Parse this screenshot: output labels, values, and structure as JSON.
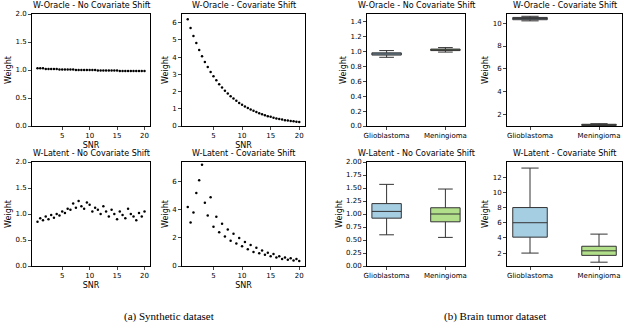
{
  "captions": [
    "(a) Synthetic dataset",
    "(b) Brain tumor dataset"
  ],
  "chart_data": [
    {
      "type": "scatter",
      "title": "W-Oracle - No Covariate Shift",
      "x_label": "SNR",
      "y_label": "Weight",
      "marker": "circle",
      "color": "#000000",
      "grid": false,
      "x": [
        0.5,
        1,
        1.5,
        2,
        2.5,
        3,
        3.5,
        4,
        4.5,
        5,
        5.5,
        6,
        6.5,
        7,
        7.5,
        8,
        8.5,
        9,
        9.5,
        10,
        10.5,
        11,
        11.5,
        12,
        12.5,
        13,
        13.5,
        14,
        14.5,
        15,
        15.5,
        16,
        16.5,
        17,
        17.5,
        18,
        18.5,
        19,
        19.5,
        20
      ],
      "values": [
        1.03,
        1.03,
        1.03,
        1.02,
        1.02,
        1.02,
        1.02,
        1.02,
        1.01,
        1.01,
        1.01,
        1.01,
        1.01,
        1.01,
        1.0,
        1.0,
        1.0,
        1.0,
        1.0,
        1.0,
        1.0,
        1.0,
        0.99,
        0.99,
        0.99,
        0.99,
        0.99,
        0.99,
        0.99,
        0.99,
        0.98,
        0.98,
        0.98,
        0.98,
        0.98,
        0.98,
        0.98,
        0.98,
        0.98,
        0.98
      ],
      "xlim": [
        -0.5,
        21
      ],
      "xticks": [
        5,
        10,
        15,
        20
      ],
      "ylim": [
        0,
        2
      ],
      "yticks": [
        {
          "value": 0,
          "label": "0.0"
        },
        0.5,
        {
          "value": 1,
          "label": "1.0"
        },
        1.5,
        {
          "value": 2,
          "label": "2.0"
        }
      ]
    },
    {
      "type": "scatter",
      "title": "W-Oracle - Covariate Shift",
      "x_label": "SNR",
      "y_label": "Weight",
      "marker": "circle",
      "color": "#000000",
      "grid": false,
      "x": [
        0.5,
        1,
        1.5,
        2,
        2.5,
        3,
        3.5,
        4,
        4.5,
        5,
        5.5,
        6,
        6.5,
        7,
        7.5,
        8,
        8.5,
        9,
        9.5,
        10,
        10.5,
        11,
        11.5,
        12,
        12.5,
        13,
        13.5,
        14,
        14.5,
        15,
        15.5,
        16,
        16.5,
        17,
        17.5,
        18,
        18.5,
        19,
        19.5,
        20
      ],
      "values": [
        6.2,
        5.69,
        5.23,
        4.81,
        4.41,
        4.05,
        3.72,
        3.42,
        3.14,
        2.89,
        2.65,
        2.43,
        2.24,
        2.05,
        1.89,
        1.73,
        1.59,
        1.46,
        1.34,
        1.23,
        1.13,
        1.04,
        0.96,
        0.88,
        0.81,
        0.74,
        0.68,
        0.62,
        0.57,
        0.53,
        0.48,
        0.44,
        0.41,
        0.38,
        0.34,
        0.32,
        0.29,
        0.27,
        0.25,
        0.23
      ],
      "xlim": [
        -0.5,
        21
      ],
      "xticks": [
        5,
        10,
        15,
        20
      ],
      "ylim": [
        0,
        6.5
      ],
      "yticks": [
        0,
        1,
        2,
        3,
        4,
        5,
        6
      ]
    },
    {
      "type": "scatter",
      "title": "W-Latent - No Covariate Shift",
      "x_label": "SNR",
      "y_label": "Weight",
      "marker": "circle",
      "color": "#000000",
      "grid": false,
      "x": [
        0.5,
        1,
        1.5,
        2,
        2.5,
        3,
        3.5,
        4,
        4.5,
        5,
        5.5,
        6,
        6.5,
        7,
        7.5,
        8,
        8.5,
        9,
        9.5,
        10,
        10.5,
        11,
        11.5,
        12,
        12.5,
        13,
        13.5,
        14,
        14.5,
        15,
        15.5,
        16,
        16.5,
        17,
        17.5,
        18,
        18.5,
        19,
        19.5,
        20
      ],
      "values": [
        0.85,
        0.92,
        0.88,
        0.95,
        0.9,
        0.98,
        0.93,
        1.0,
        0.97,
        1.05,
        1.02,
        1.1,
        1.08,
        1.2,
        1.12,
        1.25,
        1.15,
        1.1,
        1.22,
        1.18,
        1.05,
        1.12,
        1.08,
        1.0,
        1.15,
        1.05,
        0.95,
        1.08,
        1.0,
        0.9,
        1.05,
        0.98,
        0.92,
        1.1,
        1.0,
        0.95,
        0.88,
        1.02,
        0.95,
        1.05
      ],
      "xlim": [
        -0.5,
        21
      ],
      "xticks": [
        5,
        10,
        15,
        20
      ],
      "ylim": [
        0,
        2
      ],
      "yticks": [
        {
          "value": 0,
          "label": "0.0"
        },
        0.5,
        {
          "value": 1,
          "label": "1.0"
        },
        1.5,
        {
          "value": 2,
          "label": "2.0"
        }
      ]
    },
    {
      "type": "scatter",
      "title": "W-Latent - Covariate Shift",
      "x_label": "SNR",
      "y_label": "Weight",
      "marker": "circle",
      "color": "#000000",
      "grid": false,
      "x": [
        0.5,
        1,
        1.5,
        2,
        2.5,
        3,
        3.5,
        4,
        4.5,
        5,
        5.5,
        6,
        6.5,
        7,
        7.5,
        8,
        8.5,
        9,
        9.5,
        10,
        10.5,
        11,
        11.5,
        12,
        12.5,
        13,
        13.5,
        14,
        14.5,
        15,
        15.5,
        16,
        16.5,
        17,
        17.5,
        18,
        18.5,
        19,
        19.5,
        20
      ],
      "values": [
        4.2,
        3.1,
        3.8,
        5.2,
        6.1,
        7.2,
        4.5,
        3.6,
        4.9,
        2.8,
        3.5,
        2.4,
        3.0,
        2.1,
        2.6,
        1.8,
        2.3,
        1.6,
        2.0,
        1.4,
        1.7,
        1.2,
        1.5,
        1.0,
        1.3,
        0.9,
        1.1,
        0.8,
        0.95,
        0.7,
        0.85,
        0.6,
        0.7,
        0.5,
        0.6,
        0.45,
        0.55,
        0.4,
        0.5,
        0.35
      ],
      "xlim": [
        -0.5,
        21
      ],
      "xticks": [
        5,
        10,
        15,
        20
      ],
      "ylim": [
        0,
        7.4
      ],
      "yticks": [
        0,
        2,
        4,
        6
      ]
    },
    {
      "type": "box",
      "title": "W-Oracle - No Covariate Shift",
      "y_label": "Weight",
      "grid": false,
      "categories": [
        "Glioblastoma",
        "Meningioma"
      ],
      "colors": [
        "#a6cee3",
        "#b2df8a"
      ],
      "q1": [
        0.95,
        1.01
      ],
      "median": [
        0.965,
        1.02
      ],
      "q3": [
        0.98,
        1.03
      ],
      "lowerfence": [
        0.92,
        0.99
      ],
      "upperfence": [
        1.01,
        1.05
      ],
      "ylim": [
        0,
        1.5
      ],
      "yticks": [
        {
          "value": 0,
          "label": "0.0"
        },
        0.2,
        0.4,
        0.6,
        0.8,
        {
          "value": 1,
          "label": "1.0"
        },
        1.2,
        1.4
      ]
    },
    {
      "type": "box",
      "title": "W-Oracle - Covariate Shift",
      "y_label": "Weight",
      "grid": false,
      "categories": [
        "Glioblastoma",
        "Meningioma"
      ],
      "colors": [
        "#a6cee3",
        "#b2df8a"
      ],
      "q1": [
        10.3,
        1.05
      ],
      "median": [
        10.4,
        1.1
      ],
      "q3": [
        10.5,
        1.15
      ],
      "lowerfence": [
        10.2,
        1.0
      ],
      "upperfence": [
        10.6,
        1.2
      ],
      "ylim": [
        1,
        10.8
      ],
      "yticks": [
        2,
        4,
        6,
        8,
        10
      ]
    },
    {
      "type": "box",
      "title": "W-Latent - No Covariate Shift",
      "y_label": "Weight",
      "grid": false,
      "categories": [
        "Glioblastoma",
        "Meningioma"
      ],
      "colors": [
        "#a6cee3",
        "#b2df8a"
      ],
      "q1": [
        0.92,
        0.85
      ],
      "median": [
        1.05,
        1.0
      ],
      "q3": [
        1.2,
        1.12
      ],
      "lowerfence": [
        0.6,
        0.55
      ],
      "upperfence": [
        1.57,
        1.48
      ],
      "ylim": [
        0,
        2
      ],
      "yticks": [
        {
          "value": 0,
          "label": "0.00"
        },
        0.25,
        {
          "value": 0.5,
          "label": "0.50"
        },
        0.75,
        {
          "value": 1,
          "label": "1.00"
        },
        1.25,
        {
          "value": 1.5,
          "label": "1.50"
        },
        1.75,
        {
          "value": 2,
          "label": "2.00"
        }
      ]
    },
    {
      "type": "box",
      "title": "W-Latent - Covariate Shift",
      "y_label": "Weight",
      "grid": false,
      "categories": [
        "Glioblastoma",
        "Meningioma"
      ],
      "colors": [
        "#a6cee3",
        "#b2df8a"
      ],
      "q1": [
        4.1,
        1.7
      ],
      "median": [
        6.0,
        2.3
      ],
      "q3": [
        8.0,
        2.9
      ],
      "lowerfence": [
        2.0,
        0.8
      ],
      "upperfence": [
        13.2,
        4.5
      ],
      "ylim": [
        0.3,
        14
      ],
      "yticks": [
        2,
        4,
        6,
        8,
        10,
        12
      ]
    }
  ]
}
